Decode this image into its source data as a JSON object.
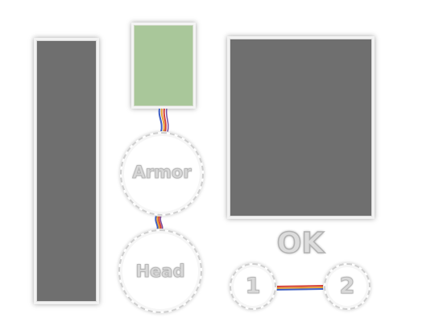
{
  "armor_slot": {
    "label": "Armor",
    "color": "#a9c79a"
  },
  "head_slot": {
    "label": "Head"
  },
  "ok_button": {
    "label": "OK"
  },
  "connector_slots": [
    {
      "label": "1"
    },
    {
      "label": "2"
    }
  ],
  "colors": {
    "panel": "#6f6f6f",
    "wire_red": "#d6403a",
    "wire_orange": "#e8a23a",
    "wire_blue": "#3f5fc4",
    "wire_purple": "#7a4fa0"
  }
}
